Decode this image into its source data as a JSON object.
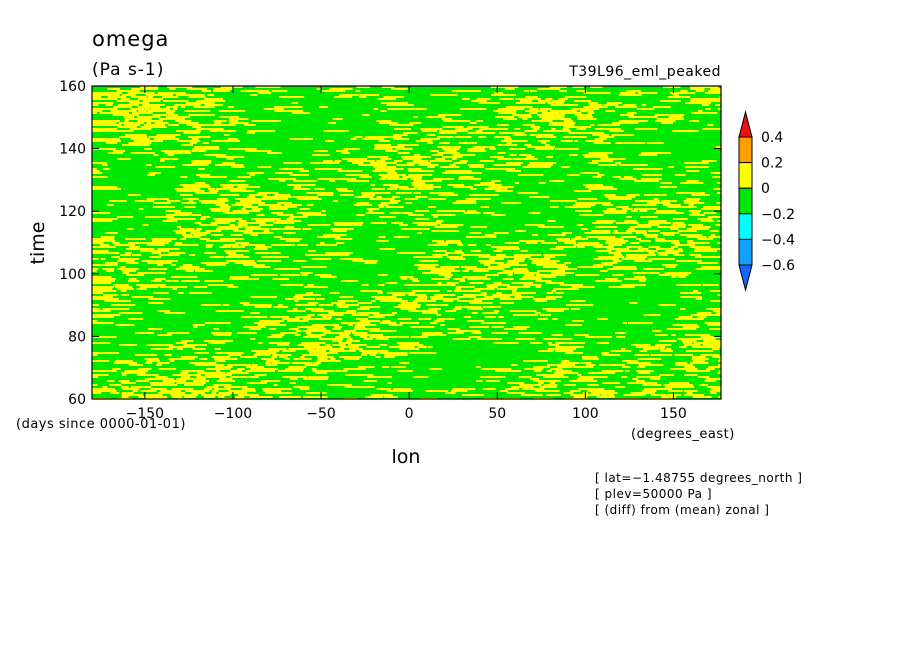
{
  "chart_data": {
    "type": "heatmap",
    "title": "omega",
    "units": "(Pa s-1)",
    "run_label": "T39L96_eml_peaked",
    "xlabel": "lon",
    "ylabel": "time",
    "x_units_label": "(degrees_east)",
    "y_units_label": "(days since 0000-01-01)",
    "xlim": [
      -180,
      177
    ],
    "ylim": [
      60,
      160
    ],
    "x_ticks": [
      -150,
      -100,
      -50,
      0,
      50,
      100,
      150
    ],
    "x_tick_labels": [
      "−150",
      "−100",
      "−50",
      "0",
      "50",
      "100",
      "150"
    ],
    "y_ticks": [
      60,
      80,
      100,
      120,
      140,
      160
    ],
    "y_tick_labels": [
      "60",
      "80",
      "100",
      "120",
      "140",
      "160"
    ],
    "colorbar": {
      "levels": [
        -0.6,
        -0.4,
        -0.2,
        0,
        0.2,
        0.4
      ],
      "level_labels": [
        "−0.6",
        "−0.4",
        "−0.2",
        "0",
        "0.2",
        "0.4"
      ],
      "colors": [
        "#1464ff",
        "#10a0ff",
        "#00ffff",
        "#00e800",
        "#ffff00",
        "#ffa000",
        "#ee1010"
      ]
    },
    "dominant_bins": [
      {
        "range": [
          -0.2,
          0
        ],
        "color": "#00e800"
      },
      {
        "range": [
          0,
          0.2
        ],
        "color": "#ffff00"
      }
    ],
    "annotations": [
      "[ lat=−1.48755 degrees_north ]",
      "[ plev=50000 Pa ]",
      "[ (diff) from (mean) zonal ]"
    ]
  }
}
